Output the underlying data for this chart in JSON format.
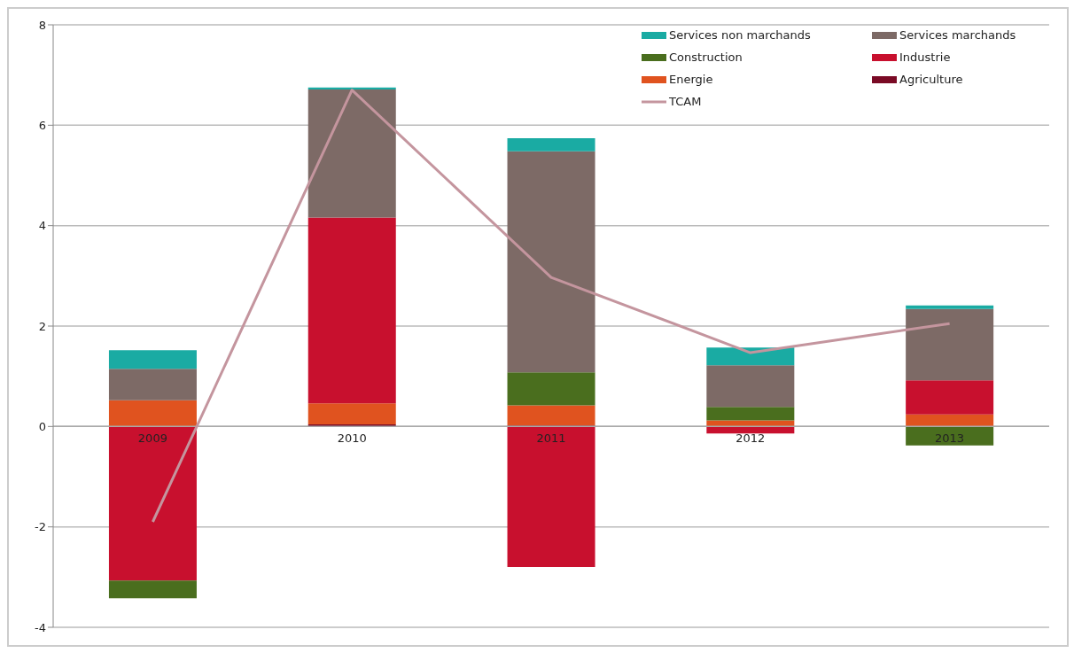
{
  "chart_data": {
    "type": "bar",
    "stacked": true,
    "categories": [
      "2009",
      "2010",
      "2011",
      "2012",
      "2013"
    ],
    "series": [
      {
        "name": "Agriculture",
        "color": "#7a0a25",
        "values": [
          0,
          0.04,
          0.02,
          0,
          0
        ]
      },
      {
        "name": "Energie",
        "color": "#e0531f",
        "values": [
          0.52,
          0.42,
          0.4,
          0.12,
          0.24
        ]
      },
      {
        "name": "Industrie",
        "color": "#c8102e",
        "values": [
          -3.07,
          3.7,
          -2.8,
          -0.14,
          0.68
        ]
      },
      {
        "name": "Construction",
        "color": "#4a6e1e",
        "values": [
          -0.35,
          0,
          0.66,
          0.27,
          -0.38
        ]
      },
      {
        "name": "Services marchands",
        "color": "#7d6a66",
        "values": [
          0.63,
          2.55,
          4.4,
          0.83,
          1.42
        ]
      },
      {
        "name": "Services non marchands",
        "color": "#1aaba3",
        "values": [
          0.37,
          0.04,
          0.26,
          0.35,
          0.07
        ]
      },
      {
        "name": "TCAM",
        "type": "line",
        "color": "#c4959e",
        "values": [
          -1.9,
          6.7,
          2.97,
          1.47,
          2.05
        ]
      }
    ],
    "ylim": [
      -4,
      8
    ],
    "yticks": [
      -4,
      -2,
      0,
      2,
      4,
      6,
      8
    ],
    "grid": "y",
    "legend": "top right",
    "marker": "none",
    "line_style": "solid"
  }
}
